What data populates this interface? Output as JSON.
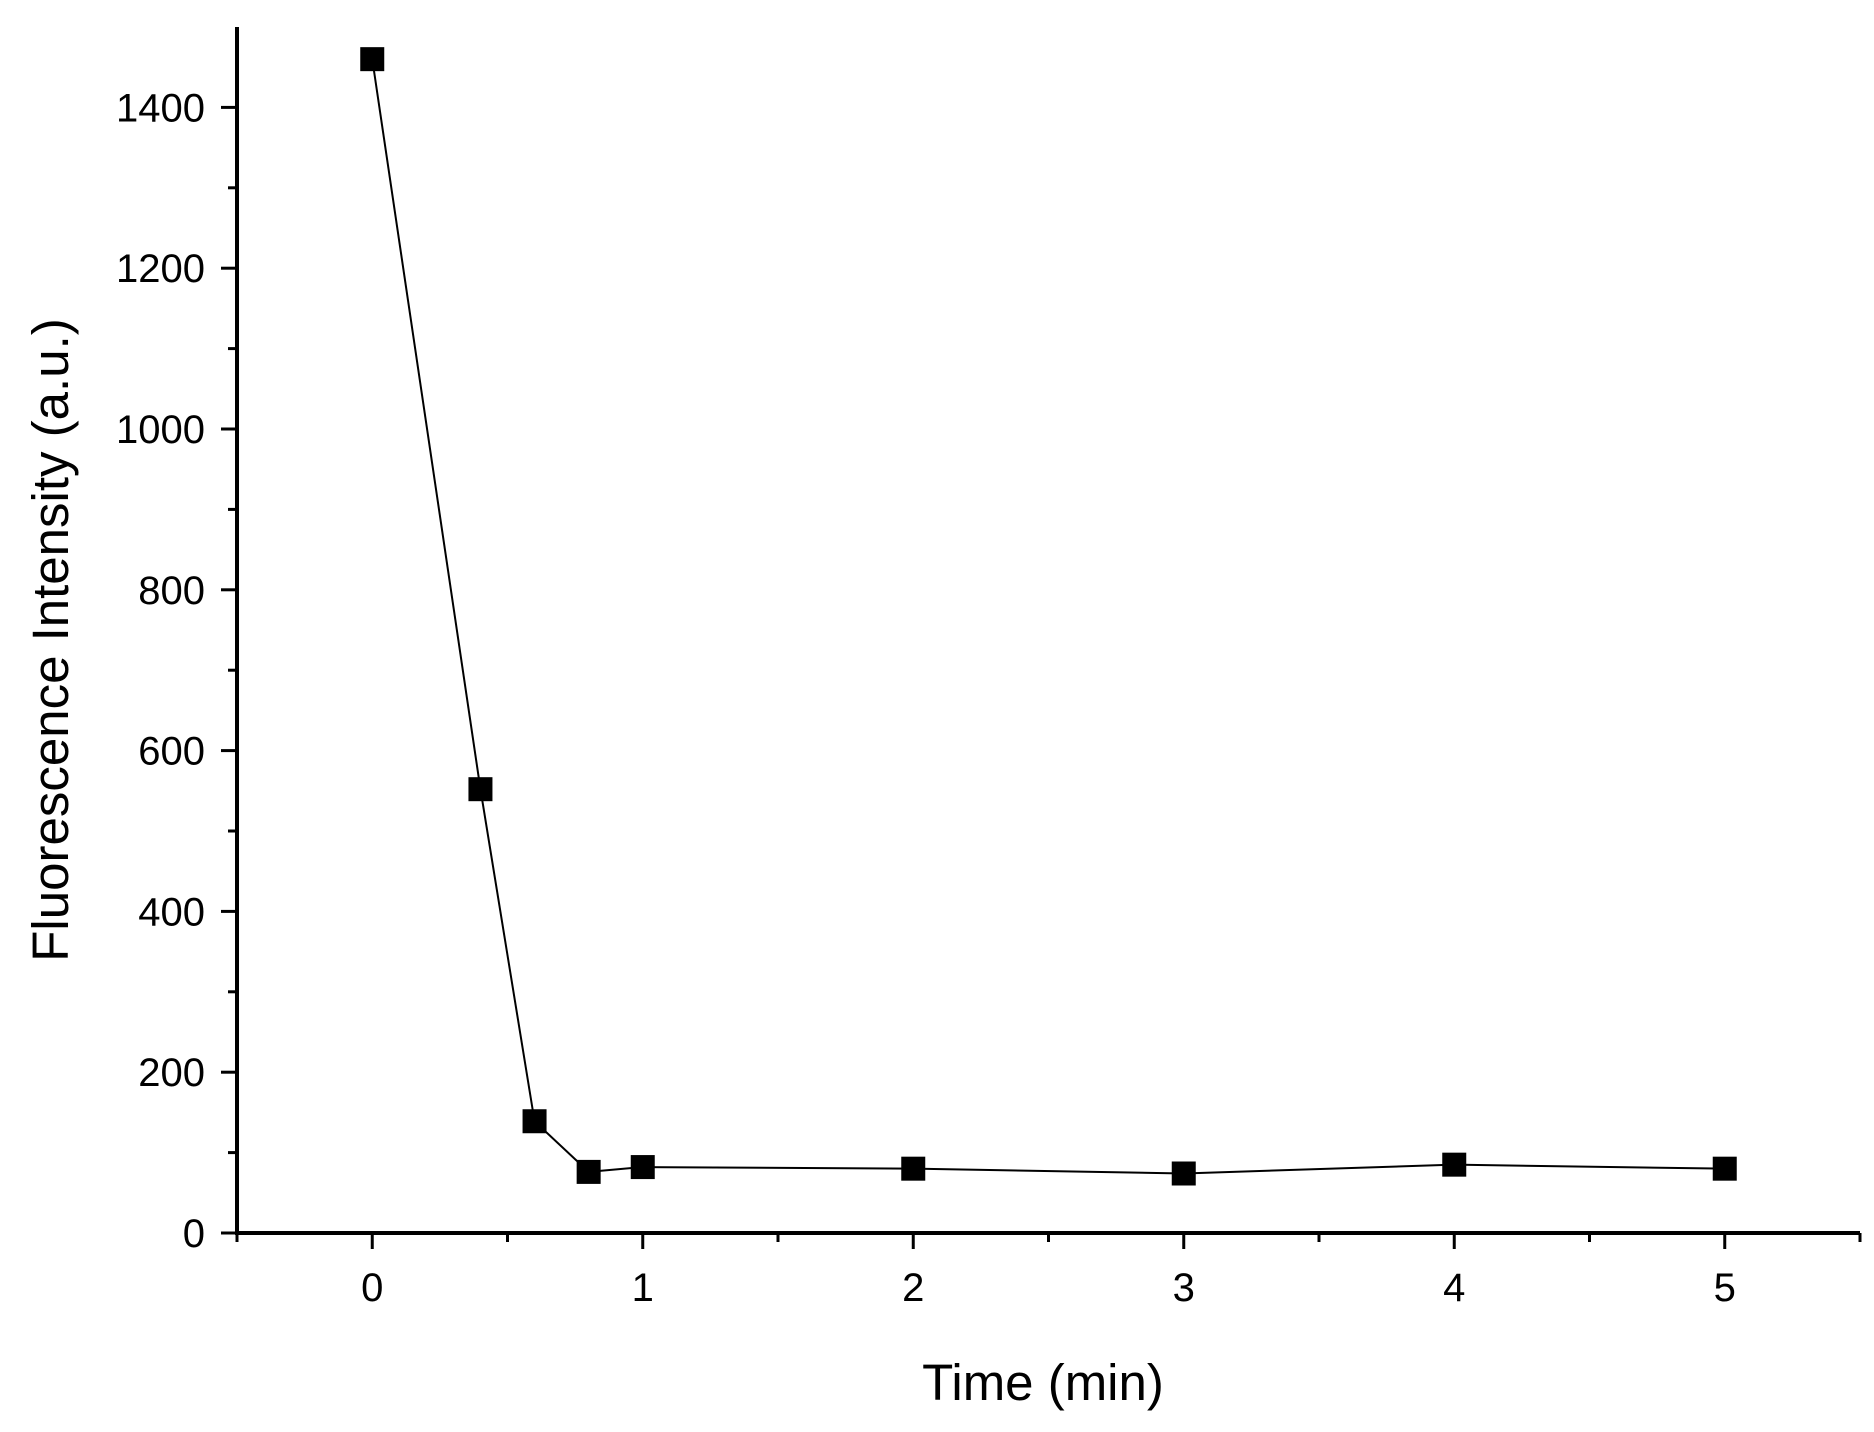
{
  "chart_data": {
    "type": "scatter",
    "title": "",
    "xlabel": "Time (min)",
    "ylabel": "Fluorescence Intensity (a.u.)",
    "xlim": [
      -0.5,
      5.5
    ],
    "ylim": [
      0,
      1500
    ],
    "x_ticks": [
      0,
      1,
      2,
      3,
      4,
      5
    ],
    "x_tick_labels": [
      "0",
      "1",
      "2",
      "3",
      "4",
      "5"
    ],
    "y_ticks": [
      0,
      200,
      400,
      600,
      800,
      1000,
      1200,
      1400
    ],
    "y_tick_labels": [
      "0",
      "200",
      "400",
      "600",
      "800",
      "1000",
      "1200",
      "1400"
    ],
    "grid": false,
    "legend": "none",
    "series": [
      {
        "marker": "filled-square",
        "line": "connected",
        "color": "#000000",
        "x": [
          0,
          0.4,
          0.6,
          0.8,
          1,
          2,
          3,
          4,
          5
        ],
        "y": [
          1460,
          552,
          139,
          76,
          82,
          80,
          74,
          85,
          80
        ]
      }
    ]
  }
}
